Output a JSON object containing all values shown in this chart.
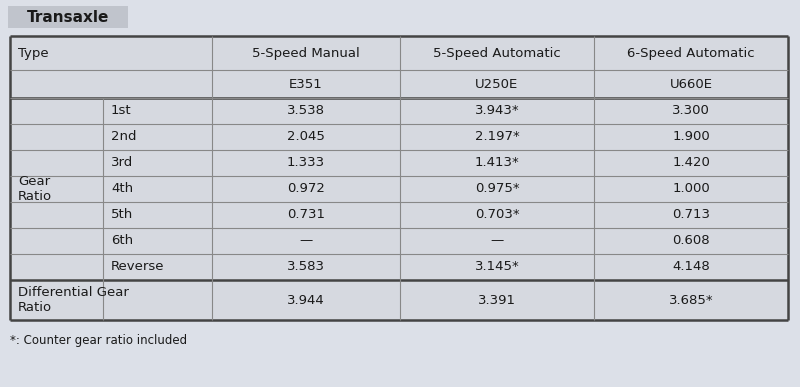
{
  "title": "Transaxle",
  "col_headers_row1": [
    "5-Speed Manual",
    "5-Speed Automatic",
    "6-Speed Automatic"
  ],
  "col_headers_row2": [
    "E351",
    "U250E",
    "U660E"
  ],
  "gear_sub_labels": [
    "1st",
    "2nd",
    "3rd",
    "4th",
    "5th",
    "6th",
    "Reverse"
  ],
  "col3": [
    "3.538",
    "2.045",
    "1.333",
    "0.972",
    "0.731",
    "—",
    "3.583",
    "3.944"
  ],
  "col4": [
    "3.943*",
    "2.197*",
    "1.413*",
    "0.975*",
    "0.703*",
    "—",
    "3.145*",
    "3.391"
  ],
  "col5": [
    "3.300",
    "1.900",
    "1.420",
    "1.000",
    "0.713",
    "0.608",
    "4.148",
    "3.685*"
  ],
  "footnote": "*: Counter gear ratio included",
  "page_bg": "#dce0e8",
  "table_bg": "#d6d9e0",
  "title_bg": "#c0c4cc",
  "border_thick_color": "#444444",
  "border_thin_color": "#888888",
  "text_color": "#1a1a1a",
  "type_label": "Type",
  "gear_ratio_label": "Gear\nRatio",
  "diff_ratio_label": "Differential Gear\nRatio"
}
